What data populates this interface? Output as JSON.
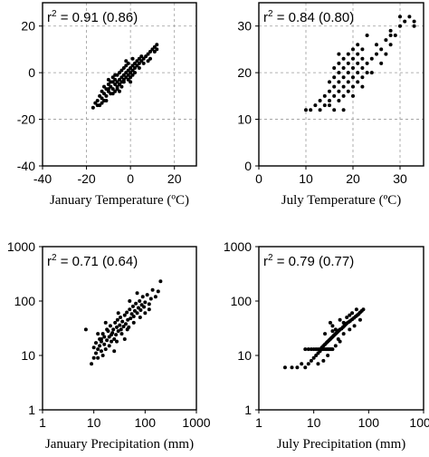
{
  "chart_data": [
    {
      "type": "scatter",
      "xlabel": "January Temperature (ºC)",
      "ylabel": "",
      "annotation": {
        "base": "r",
        "sup": "2",
        "rest": " = 0.91 (0.86)"
      },
      "xscale": "linear",
      "yscale": "linear",
      "xlim": [
        -40,
        30
      ],
      "ylim": [
        -40,
        30
      ],
      "xticks": [
        -40,
        -20,
        0,
        20
      ],
      "xtick_labels": [
        "-40",
        "-20",
        "0",
        "20"
      ],
      "yticks": [
        -40,
        -20,
        0,
        20
      ],
      "ytick_labels": [
        "-40",
        "-20",
        "0",
        "20"
      ],
      "grid": true,
      "points": [
        [
          -17,
          -15
        ],
        [
          -16,
          -13
        ],
        [
          -15,
          -12
        ],
        [
          -14,
          -10
        ],
        [
          -13,
          -11
        ],
        [
          -13,
          -8
        ],
        [
          -12,
          -9
        ],
        [
          -12,
          -6
        ],
        [
          -11,
          -10
        ],
        [
          -11,
          -7
        ],
        [
          -10,
          -8
        ],
        [
          -10,
          -5
        ],
        [
          -10,
          -3
        ],
        [
          -9,
          -9
        ],
        [
          -9,
          -6
        ],
        [
          -8,
          -7
        ],
        [
          -8,
          -4
        ],
        [
          -8,
          -2
        ],
        [
          -7,
          -8
        ],
        [
          -7,
          -5
        ],
        [
          -7,
          -3
        ],
        [
          -6,
          -6
        ],
        [
          -6,
          -4
        ],
        [
          -6,
          -1
        ],
        [
          -5,
          -5
        ],
        [
          -5,
          -3
        ],
        [
          -5,
          0
        ],
        [
          -4,
          -4
        ],
        [
          -4,
          -2
        ],
        [
          -4,
          1
        ],
        [
          -3,
          -3
        ],
        [
          -3,
          -1
        ],
        [
          -3,
          2
        ],
        [
          -2,
          -2
        ],
        [
          -2,
          0
        ],
        [
          -2,
          3
        ],
        [
          -1,
          -1
        ],
        [
          -1,
          1
        ],
        [
          -1,
          4
        ],
        [
          0,
          0
        ],
        [
          0,
          -4
        ],
        [
          0,
          2
        ],
        [
          1,
          1
        ],
        [
          1,
          3
        ],
        [
          1,
          6
        ],
        [
          2,
          2
        ],
        [
          2,
          4
        ],
        [
          3,
          3
        ],
        [
          3,
          5
        ],
        [
          4,
          4
        ],
        [
          4,
          6
        ],
        [
          5,
          5
        ],
        [
          5,
          7
        ],
        [
          6,
          6
        ],
        [
          7,
          7
        ],
        [
          8,
          8
        ],
        [
          9,
          9
        ],
        [
          10,
          10
        ],
        [
          11,
          11
        ],
        [
          12,
          12
        ],
        [
          11,
          9
        ],
        [
          9,
          6
        ],
        [
          -14,
          -14
        ],
        [
          -12,
          -12
        ],
        [
          -10,
          -7
        ],
        [
          -9,
          -4
        ],
        [
          -6,
          -7
        ],
        [
          -3,
          -4
        ],
        [
          -1,
          -3
        ],
        [
          0,
          -2
        ],
        [
          2,
          0
        ],
        [
          -2,
          5
        ],
        [
          -8,
          -9
        ],
        [
          -11,
          -12
        ],
        [
          1,
          -1
        ],
        [
          6,
          4
        ],
        [
          8,
          5
        ],
        [
          12,
          10
        ],
        [
          4,
          2
        ],
        [
          -4,
          -6
        ],
        [
          -7,
          -1
        ],
        [
          -5,
          -8
        ],
        [
          -15,
          -14
        ],
        [
          -13,
          -13
        ]
      ]
    },
    {
      "type": "scatter",
      "xlabel": "July Temperature (ºC)",
      "ylabel": "",
      "annotation": {
        "base": "r",
        "sup": "2",
        "rest": " = 0.84 (0.80)"
      },
      "xscale": "linear",
      "yscale": "linear",
      "xlim": [
        0,
        35
      ],
      "ylim": [
        0,
        35
      ],
      "xticks": [
        0,
        10,
        20,
        30
      ],
      "xtick_labels": [
        "0",
        "10",
        "20",
        "30"
      ],
      "yticks": [
        0,
        10,
        20,
        30
      ],
      "ytick_labels": [
        "0",
        "10",
        "20",
        "30"
      ],
      "grid": true,
      "points": [
        [
          10,
          12
        ],
        [
          11,
          12
        ],
        [
          12,
          13
        ],
        [
          13,
          12
        ],
        [
          13,
          14
        ],
        [
          14,
          13
        ],
        [
          14,
          15
        ],
        [
          15,
          14
        ],
        [
          15,
          16
        ],
        [
          15,
          18
        ],
        [
          16,
          15
        ],
        [
          16,
          17
        ],
        [
          16,
          19
        ],
        [
          16,
          21
        ],
        [
          17,
          16
        ],
        [
          17,
          18
        ],
        [
          17,
          20
        ],
        [
          17,
          14
        ],
        [
          18,
          17
        ],
        [
          18,
          19
        ],
        [
          18,
          21
        ],
        [
          18,
          15
        ],
        [
          18,
          23
        ],
        [
          19,
          18
        ],
        [
          19,
          20
        ],
        [
          19,
          22
        ],
        [
          19,
          16
        ],
        [
          20,
          19
        ],
        [
          20,
          21
        ],
        [
          20,
          23
        ],
        [
          20,
          17
        ],
        [
          20,
          25
        ],
        [
          21,
          20
        ],
        [
          21,
          22
        ],
        [
          21,
          18
        ],
        [
          21,
          24
        ],
        [
          22,
          21
        ],
        [
          22,
          19
        ],
        [
          22,
          23
        ],
        [
          22,
          17
        ],
        [
          23,
          20
        ],
        [
          23,
          22
        ],
        [
          24,
          23
        ],
        [
          25,
          24
        ],
        [
          25,
          26
        ],
        [
          26,
          25
        ],
        [
          27,
          27
        ],
        [
          28,
          26
        ],
        [
          28,
          29
        ],
        [
          29,
          28
        ],
        [
          30,
          30
        ],
        [
          30,
          32
        ],
        [
          31,
          31
        ],
        [
          32,
          32
        ],
        [
          33,
          31
        ],
        [
          33,
          30
        ],
        [
          27,
          24
        ],
        [
          23,
          28
        ],
        [
          17,
          22
        ],
        [
          18,
          12
        ],
        [
          15,
          13
        ],
        [
          19,
          24
        ],
        [
          21,
          26
        ],
        [
          20,
          15
        ],
        [
          24,
          20
        ],
        [
          26,
          22
        ],
        [
          28,
          28
        ],
        [
          16,
          12
        ],
        [
          17,
          24
        ],
        [
          22,
          25
        ]
      ]
    },
    {
      "type": "scatter",
      "xlabel": "January Precipitation (mm)",
      "ylabel": "",
      "annotation": {
        "base": "r",
        "sup": "2",
        "rest": " = 0.71 (0.64)"
      },
      "xscale": "log",
      "yscale": "log",
      "xlim": [
        1,
        1000
      ],
      "ylim": [
        1,
        1000
      ],
      "xticks": [
        1,
        10,
        100,
        1000
      ],
      "xtick_labels": [
        "1",
        "10",
        "100",
        "1000"
      ],
      "yticks": [
        1,
        10,
        100,
        1000
      ],
      "ytick_labels": [
        "1",
        "10",
        "100",
        "1000"
      ],
      "grid": false,
      "points": [
        [
          7,
          30
        ],
        [
          9,
          7
        ],
        [
          10,
          9
        ],
        [
          10,
          14
        ],
        [
          11,
          11
        ],
        [
          11,
          17
        ],
        [
          12,
          13
        ],
        [
          12,
          9
        ],
        [
          13,
          20
        ],
        [
          13,
          15
        ],
        [
          14,
          12
        ],
        [
          14,
          18
        ],
        [
          15,
          10
        ],
        [
          15,
          25
        ],
        [
          16,
          16
        ],
        [
          16,
          22
        ],
        [
          17,
          13
        ],
        [
          18,
          19
        ],
        [
          19,
          28
        ],
        [
          20,
          15
        ],
        [
          20,
          22
        ],
        [
          21,
          35
        ],
        [
          22,
          18
        ],
        [
          23,
          26
        ],
        [
          24,
          30
        ],
        [
          25,
          20
        ],
        [
          26,
          40
        ],
        [
          27,
          24
        ],
        [
          28,
          33
        ],
        [
          29,
          45
        ],
        [
          30,
          28
        ],
        [
          32,
          36
        ],
        [
          33,
          50
        ],
        [
          34,
          30
        ],
        [
          36,
          42
        ],
        [
          38,
          34
        ],
        [
          40,
          55
        ],
        [
          42,
          38
        ],
        [
          44,
          62
        ],
        [
          46,
          45
        ],
        [
          48,
          33
        ],
        [
          50,
          70
        ],
        [
          52,
          48
        ],
        [
          55,
          58
        ],
        [
          58,
          80
        ],
        [
          60,
          52
        ],
        [
          63,
          66
        ],
        [
          66,
          90
        ],
        [
          70,
          60
        ],
        [
          74,
          75
        ],
        [
          78,
          100
        ],
        [
          82,
          68
        ],
        [
          86,
          85
        ],
        [
          90,
          120
        ],
        [
          95,
          78
        ],
        [
          100,
          95
        ],
        [
          110,
          130
        ],
        [
          120,
          88
        ],
        [
          130,
          110
        ],
        [
          140,
          160
        ],
        [
          160,
          120
        ],
        [
          180,
          150
        ],
        [
          200,
          230
        ],
        [
          14,
          20
        ],
        [
          18,
          30
        ],
        [
          22,
          24
        ],
        [
          28,
          18
        ],
        [
          35,
          25
        ],
        [
          45,
          30
        ],
        [
          60,
          40
        ],
        [
          80,
          50
        ],
        [
          100,
          60
        ],
        [
          120,
          70
        ],
        [
          40,
          20
        ],
        [
          25,
          12
        ],
        [
          12,
          25
        ],
        [
          17,
          40
        ],
        [
          30,
          60
        ],
        [
          50,
          100
        ],
        [
          70,
          140
        ]
      ]
    },
    {
      "type": "scatter",
      "xlabel": "July Precipitation (mm)",
      "ylabel": "",
      "annotation": {
        "base": "r",
        "sup": "2",
        "rest": " = 0.79 (0.77)"
      },
      "xscale": "log",
      "yscale": "log",
      "xlim": [
        1,
        1000
      ],
      "ylim": [
        1,
        1000
      ],
      "xticks": [
        1,
        10,
        100,
        1000
      ],
      "xtick_labels": [
        "1",
        "10",
        "100",
        "1000"
      ],
      "yticks": [
        1,
        10,
        100,
        1000
      ],
      "ytick_labels": [
        "1",
        "10",
        "100",
        "1000"
      ],
      "grid": false,
      "points": [
        [
          3,
          6
        ],
        [
          4,
          6
        ],
        [
          5,
          6
        ],
        [
          6,
          7
        ],
        [
          7,
          13
        ],
        [
          8,
          13
        ],
        [
          9,
          13
        ],
        [
          10,
          13
        ],
        [
          11,
          13
        ],
        [
          12,
          13
        ],
        [
          13,
          13
        ],
        [
          14,
          13
        ],
        [
          15,
          13
        ],
        [
          16,
          13
        ],
        [
          17,
          13
        ],
        [
          18,
          13
        ],
        [
          19,
          13
        ],
        [
          20,
          13
        ],
        [
          21,
          13
        ],
        [
          22,
          13
        ],
        [
          7,
          6
        ],
        [
          8,
          7
        ],
        [
          9,
          8
        ],
        [
          10,
          9
        ],
        [
          11,
          10
        ],
        [
          12,
          11
        ],
        [
          13,
          12
        ],
        [
          14,
          14
        ],
        [
          15,
          15
        ],
        [
          16,
          16
        ],
        [
          17,
          17
        ],
        [
          18,
          18
        ],
        [
          19,
          19
        ],
        [
          20,
          20
        ],
        [
          21,
          21
        ],
        [
          22,
          22
        ],
        [
          23,
          23
        ],
        [
          24,
          24
        ],
        [
          25,
          25
        ],
        [
          26,
          26
        ],
        [
          27,
          27
        ],
        [
          28,
          28
        ],
        [
          29,
          29
        ],
        [
          30,
          30
        ],
        [
          32,
          31
        ],
        [
          34,
          33
        ],
        [
          36,
          35
        ],
        [
          38,
          37
        ],
        [
          40,
          39
        ],
        [
          43,
          41
        ],
        [
          46,
          43
        ],
        [
          50,
          46
        ],
        [
          54,
          49
        ],
        [
          58,
          52
        ],
        [
          62,
          55
        ],
        [
          66,
          58
        ],
        [
          70,
          62
        ],
        [
          75,
          66
        ],
        [
          80,
          70
        ],
        [
          20,
          40
        ],
        [
          22,
          35
        ],
        [
          25,
          30
        ],
        [
          28,
          20
        ],
        [
          30,
          45
        ],
        [
          35,
          25
        ],
        [
          40,
          50
        ],
        [
          45,
          30
        ],
        [
          50,
          60
        ],
        [
          55,
          35
        ],
        [
          15,
          8
        ],
        [
          18,
          10
        ],
        [
          25,
          15
        ],
        [
          30,
          18
        ],
        [
          12,
          7
        ],
        [
          16,
          25
        ],
        [
          22,
          28
        ],
        [
          35,
          40
        ],
        [
          60,
          70
        ],
        [
          70,
          45
        ],
        [
          45,
          55
        ]
      ]
    }
  ]
}
